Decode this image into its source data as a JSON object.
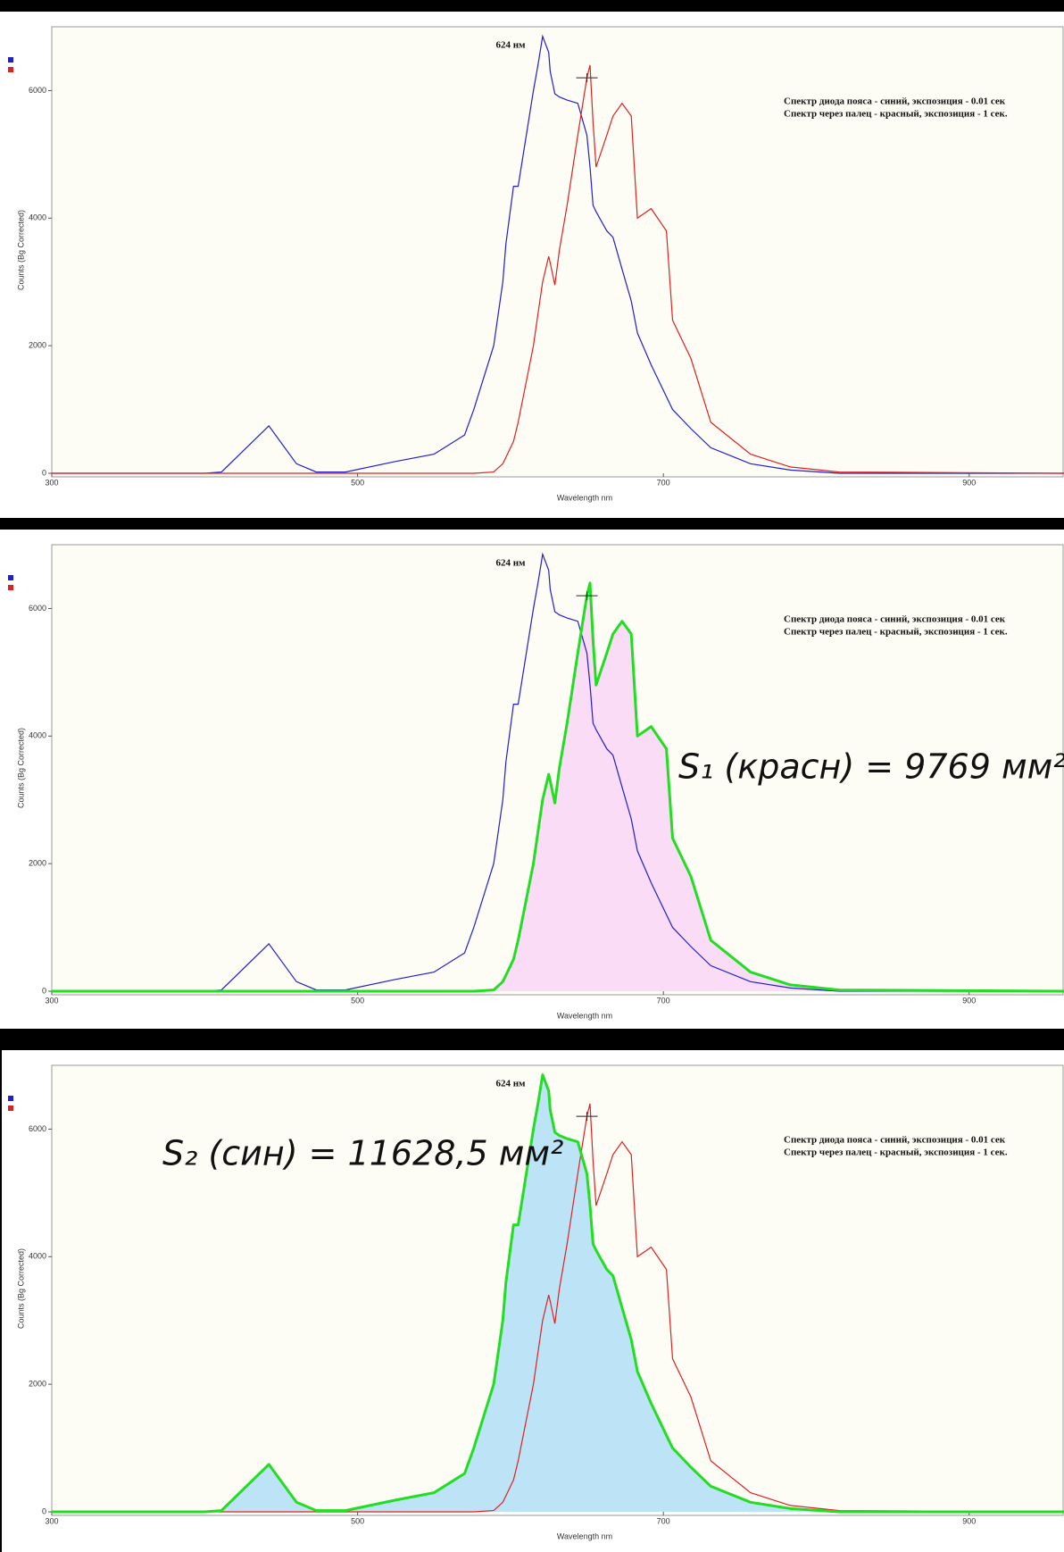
{
  "chart_data": [
    {
      "type": "line",
      "peak_label": "624 нм",
      "x_label": "Wavelength nm",
      "y_label": "Counts (Bg Corrected)",
      "xlim": [
        300,
        962
      ],
      "ylim": [
        0,
        7000
      ],
      "xticks": [
        300,
        500,
        700,
        900
      ],
      "yticks": [
        0,
        2000,
        4000,
        6000
      ],
      "grid": false,
      "cursor": {
        "x": 650,
        "y": 6200
      },
      "x": [
        300,
        400,
        411,
        442,
        460,
        473,
        492,
        524,
        550,
        570,
        576,
        589,
        595,
        597,
        602,
        605,
        615,
        618,
        621,
        625,
        626,
        629,
        632,
        637,
        644,
        650,
        652,
        654,
        656,
        663,
        667,
        673,
        679,
        683,
        692,
        702,
        706,
        708,
        718,
        731,
        757,
        783,
        815,
        962
      ],
      "series": [
        {
          "name": "Спектр диода пояса - синий, экспозиция - 0.01 сек",
          "color": "#1f1fd0",
          "values": [
            0,
            0,
            20,
            744,
            150,
            20,
            20,
            180,
            300,
            600,
            1000,
            2000,
            3000,
            3600,
            4500,
            4500,
            6000,
            6400,
            6850,
            6600,
            6300,
            5950,
            5900,
            5850,
            5800,
            5300,
            4800,
            4200,
            4100,
            3800,
            3700,
            3200,
            2700,
            2200,
            1700,
            1200,
            1000,
            950,
            700,
            400,
            150,
            50,
            0,
            0
          ]
        },
        {
          "name": "Спектр через палец - красный, экспозиция - 1 сек.",
          "color": "#e02020",
          "values": [
            0,
            0,
            0,
            0,
            0,
            0,
            0,
            0,
            0,
            0,
            0,
            20,
            150,
            250,
            500,
            800,
            2000,
            2500,
            3000,
            3400,
            3300,
            2950,
            3500,
            4200,
            5300,
            6200,
            6400,
            5500,
            4800,
            5300,
            5600,
            5800,
            5600,
            4000,
            4150,
            3800,
            2400,
            2300,
            1800,
            800,
            300,
            100,
            20,
            0
          ]
        }
      ]
    },
    {
      "type": "line",
      "peak_label": "624 нм",
      "x_label": "Wavelength nm",
      "y_label": "Counts (Bg Corrected)",
      "xlim": [
        300,
        962
      ],
      "ylim": [
        0,
        7000
      ],
      "xticks": [
        300,
        500,
        700,
        900
      ],
      "yticks": [
        0,
        2000,
        4000,
        6000
      ],
      "grid": false,
      "cursor": {
        "x": 650,
        "y": 6200
      },
      "highlight": {
        "series": 1,
        "fill": "#fadcf6",
        "outline": "#22dd22"
      },
      "area_label": "S₁ (красн) = 9769 мм²",
      "x": [
        300,
        400,
        411,
        442,
        460,
        473,
        492,
        524,
        550,
        570,
        576,
        589,
        595,
        597,
        602,
        605,
        615,
        618,
        621,
        625,
        626,
        629,
        632,
        637,
        644,
        650,
        652,
        654,
        656,
        663,
        667,
        673,
        679,
        683,
        692,
        702,
        706,
        708,
        718,
        731,
        757,
        783,
        815,
        962
      ],
      "series": [
        {
          "name": "Спектр диода пояса - синий, экспозиция - 0.01 сек",
          "color": "#1f1fd0",
          "values": [
            0,
            0,
            20,
            744,
            150,
            20,
            20,
            180,
            300,
            600,
            1000,
            2000,
            3000,
            3600,
            4500,
            4500,
            6000,
            6400,
            6850,
            6600,
            6300,
            5950,
            5900,
            5850,
            5800,
            5300,
            4800,
            4200,
            4100,
            3800,
            3700,
            3200,
            2700,
            2200,
            1700,
            1200,
            1000,
            950,
            700,
            400,
            150,
            50,
            0,
            0
          ]
        },
        {
          "name": "Спектр через палец - красный, экспозиция - 1 сек.",
          "color": "#e02020",
          "values": [
            0,
            0,
            0,
            0,
            0,
            0,
            0,
            0,
            0,
            0,
            0,
            20,
            150,
            250,
            500,
            800,
            2000,
            2500,
            3000,
            3400,
            3300,
            2950,
            3500,
            4200,
            5300,
            6200,
            6400,
            5500,
            4800,
            5300,
            5600,
            5800,
            5600,
            4000,
            4150,
            3800,
            2400,
            2300,
            1800,
            800,
            300,
            100,
            20,
            0
          ]
        }
      ]
    },
    {
      "type": "line",
      "peak_label": "624 нм",
      "x_label": "Wavelength nm",
      "y_label": "Counts (Bg Corrected)",
      "xlim": [
        300,
        962
      ],
      "ylim": [
        0,
        7000
      ],
      "xticks": [
        300,
        500,
        700,
        900
      ],
      "yticks": [
        0,
        2000,
        4000,
        6000
      ],
      "grid": false,
      "cursor": {
        "x": 650,
        "y": 6200
      },
      "highlight": {
        "series": 0,
        "fill": "#bde4f6",
        "outline": "#22dd22"
      },
      "area_label": "S₂ (син) = 11628,5 мм²",
      "x": [
        300,
        400,
        411,
        442,
        460,
        473,
        492,
        524,
        550,
        570,
        576,
        589,
        595,
        597,
        602,
        605,
        615,
        618,
        621,
        625,
        626,
        629,
        632,
        637,
        644,
        650,
        652,
        654,
        656,
        663,
        667,
        673,
        679,
        683,
        692,
        702,
        706,
        708,
        718,
        731,
        757,
        783,
        815,
        962
      ],
      "series": [
        {
          "name": "Спектр диода пояса - синий, экспозиция - 0.01 сек",
          "color": "#1f1fd0",
          "values": [
            0,
            0,
            20,
            744,
            150,
            20,
            20,
            180,
            300,
            600,
            1000,
            2000,
            3000,
            3600,
            4500,
            4500,
            6000,
            6400,
            6850,
            6600,
            6300,
            5950,
            5900,
            5850,
            5800,
            5300,
            4800,
            4200,
            4100,
            3800,
            3700,
            3200,
            2700,
            2200,
            1700,
            1200,
            1000,
            950,
            700,
            400,
            150,
            50,
            0,
            0
          ]
        },
        {
          "name": "Спектр через палец - красный, экспозиция - 1 сек.",
          "color": "#e02020",
          "values": [
            0,
            0,
            0,
            0,
            0,
            0,
            0,
            0,
            0,
            0,
            0,
            20,
            150,
            250,
            500,
            800,
            2000,
            2500,
            3000,
            3400,
            3300,
            2950,
            3500,
            4200,
            5300,
            6200,
            6400,
            5500,
            4800,
            5300,
            5600,
            5800,
            5600,
            4000,
            4150,
            3800,
            2400,
            2300,
            1800,
            800,
            300,
            100,
            20,
            0
          ]
        }
      ]
    }
  ]
}
